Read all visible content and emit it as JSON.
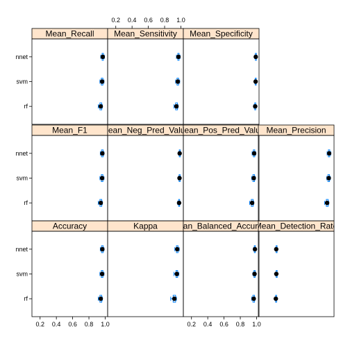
{
  "chart_data": {
    "type": "dotplot",
    "models": [
      "rf",
      "svm",
      "nnet"
    ],
    "xlim": [
      0.1,
      1.03
    ],
    "x_ticks": [
      0.2,
      0.4,
      0.6,
      0.8,
      1.0
    ],
    "x_tick_labels": [
      "0.2",
      "0.4",
      "0.6",
      "0.8",
      "1.0"
    ],
    "panels": [
      {
        "title": "Accuracy",
        "row": 0,
        "col": 0,
        "points": [
          {
            "model": "nnet",
            "median": 0.965,
            "box": [
              0.955,
              0.975
            ],
            "whisker": [
              0.94,
              0.985
            ]
          },
          {
            "model": "svm",
            "median": 0.962,
            "box": [
              0.952,
              0.972
            ],
            "whisker": [
              0.935,
              0.985
            ]
          },
          {
            "model": "rf",
            "median": 0.945,
            "box": [
              0.935,
              0.958
            ],
            "whisker": [
              0.915,
              0.965
            ]
          }
        ]
      },
      {
        "title": "Kappa",
        "row": 0,
        "col": 1,
        "points": [
          {
            "model": "nnet",
            "median": 0.955,
            "box": [
              0.945,
              0.965
            ],
            "whisker": [
              0.925,
              0.98
            ]
          },
          {
            "model": "svm",
            "median": 0.95,
            "box": [
              0.94,
              0.96
            ],
            "whisker": [
              0.915,
              0.975
            ]
          },
          {
            "model": "rf",
            "median": 0.92,
            "box": [
              0.905,
              0.935
            ],
            "whisker": [
              0.875,
              0.945
            ]
          }
        ]
      },
      {
        "title": "Mean_Balanced_Accuracy",
        "row": 0,
        "col": 2,
        "points": [
          {
            "model": "nnet",
            "median": 0.98,
            "box": [
              0.972,
              0.985
            ],
            "whisker": [
              0.962,
              0.99
            ]
          },
          {
            "model": "svm",
            "median": 0.975,
            "box": [
              0.968,
              0.982
            ],
            "whisker": [
              0.955,
              0.99
            ]
          },
          {
            "model": "rf",
            "median": 0.965,
            "box": [
              0.955,
              0.975
            ],
            "whisker": [
              0.94,
              0.98
            ]
          }
        ]
      },
      {
        "title": "Mean_Detection_Rate",
        "row": 0,
        "col": 3,
        "points": [
          {
            "model": "nnet",
            "median": 0.32,
            "box": [
              0.318,
              0.322
            ],
            "whisker": [
              0.312,
              0.328
            ]
          },
          {
            "model": "svm",
            "median": 0.321,
            "box": [
              0.319,
              0.323
            ],
            "whisker": [
              0.312,
              0.328
            ]
          },
          {
            "model": "rf",
            "median": 0.315,
            "box": [
              0.312,
              0.318
            ],
            "whisker": [
              0.305,
              0.322
            ]
          }
        ]
      },
      {
        "title": "Mean_F1",
        "row": 1,
        "col": 0,
        "points": [
          {
            "model": "nnet",
            "median": 0.965,
            "box": [
              0.955,
              0.975
            ],
            "whisker": [
              0.94,
              0.985
            ]
          },
          {
            "model": "svm",
            "median": 0.962,
            "box": [
              0.952,
              0.972
            ],
            "whisker": [
              0.935,
              0.985
            ]
          },
          {
            "model": "rf",
            "median": 0.945,
            "box": [
              0.935,
              0.958
            ],
            "whisker": [
              0.915,
              0.965
            ]
          }
        ]
      },
      {
        "title": "Mean_Neg_Pred_Value",
        "row": 1,
        "col": 1,
        "points": [
          {
            "model": "nnet",
            "median": 0.985,
            "box": [
              0.98,
              0.99
            ],
            "whisker": [
              0.972,
              0.995
            ]
          },
          {
            "model": "svm",
            "median": 0.983,
            "box": [
              0.978,
              0.988
            ],
            "whisker": [
              0.968,
              0.995
            ]
          },
          {
            "model": "rf",
            "median": 0.978,
            "box": [
              0.972,
              0.983
            ],
            "whisker": [
              0.96,
              0.99
            ]
          }
        ]
      },
      {
        "title": "Mean_Pos_Pred_Value",
        "row": 1,
        "col": 2,
        "points": [
          {
            "model": "nnet",
            "median": 0.97,
            "box": [
              0.96,
              0.978
            ],
            "whisker": [
              0.945,
              0.99
            ]
          },
          {
            "model": "svm",
            "median": 0.965,
            "box": [
              0.955,
              0.975
            ],
            "whisker": [
              0.94,
              0.985
            ]
          },
          {
            "model": "rf",
            "median": 0.945,
            "box": [
              0.935,
              0.958
            ],
            "whisker": [
              0.915,
              0.965
            ]
          }
        ]
      },
      {
        "title": "Mean_Precision",
        "row": 1,
        "col": 3,
        "points": [
          {
            "model": "nnet",
            "median": 0.97,
            "box": [
              0.96,
              0.978
            ],
            "whisker": [
              0.945,
              0.99
            ]
          },
          {
            "model": "svm",
            "median": 0.965,
            "box": [
              0.955,
              0.975
            ],
            "whisker": [
              0.94,
              0.985
            ]
          },
          {
            "model": "rf",
            "median": 0.945,
            "box": [
              0.935,
              0.958
            ],
            "whisker": [
              0.915,
              0.965
            ]
          }
        ]
      },
      {
        "title": "Mean_Recall",
        "row": 2,
        "col": 0,
        "points": [
          {
            "model": "nnet",
            "median": 0.97,
            "box": [
              0.962,
              0.978
            ],
            "whisker": [
              0.945,
              0.99
            ]
          },
          {
            "model": "svm",
            "median": 0.962,
            "box": [
              0.952,
              0.972
            ],
            "whisker": [
              0.935,
              0.985
            ]
          },
          {
            "model": "rf",
            "median": 0.945,
            "box": [
              0.935,
              0.958
            ],
            "whisker": [
              0.915,
              0.965
            ]
          }
        ]
      },
      {
        "title": "Mean_Sensitivity",
        "row": 2,
        "col": 1,
        "points": [
          {
            "model": "nnet",
            "median": 0.97,
            "box": [
              0.962,
              0.978
            ],
            "whisker": [
              0.945,
              0.99
            ]
          },
          {
            "model": "svm",
            "median": 0.962,
            "box": [
              0.952,
              0.972
            ],
            "whisker": [
              0.935,
              0.985
            ]
          },
          {
            "model": "rf",
            "median": 0.945,
            "box": [
              0.935,
              0.958
            ],
            "whisker": [
              0.915,
              0.965
            ]
          }
        ]
      },
      {
        "title": "Mean_Specificity",
        "row": 2,
        "col": 2,
        "points": [
          {
            "model": "nnet",
            "median": 0.99,
            "box": [
              0.985,
              0.993
            ],
            "whisker": [
              0.978,
              0.996
            ]
          },
          {
            "model": "svm",
            "median": 0.988,
            "box": [
              0.983,
              0.992
            ],
            "whisker": [
              0.975,
              0.996
            ]
          },
          {
            "model": "rf",
            "median": 0.983,
            "box": [
              0.977,
              0.988
            ],
            "whisker": [
              0.965,
              0.993
            ]
          }
        ]
      }
    ],
    "colors": {
      "median_dot": "#000000",
      "box": "#0080ff",
      "whisker": "#0080ff",
      "strip_bg": "#ffe5cc",
      "frame": "#000000"
    }
  }
}
